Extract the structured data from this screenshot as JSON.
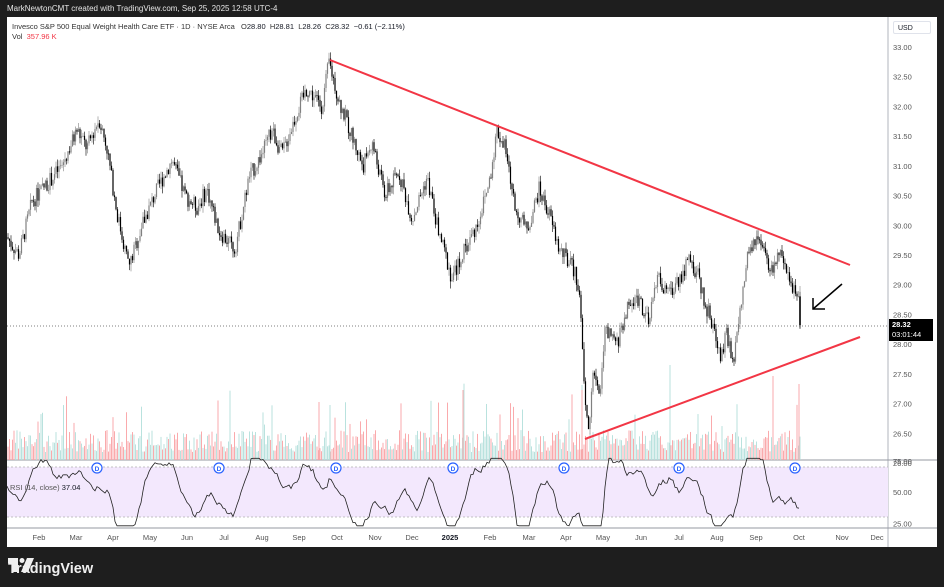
{
  "header": {
    "credit": "MarkNewtonCMT created with TradingView.com, Sep 25, 2025 12:58 UTC-4"
  },
  "legend": {
    "symbol": "Invesco S&P 500 Equal Weight Health Care ETF · 1D · NYSE Arca",
    "open_label": "O",
    "open": "28.80",
    "high_label": "H",
    "high": "28.81",
    "low_label": "L",
    "low": "28.26",
    "close_label": "C",
    "close": "28.32",
    "change": "−0.61 (−2.11%)",
    "vol_label": "Vol",
    "vol": "357.96 K"
  },
  "price_axis": {
    "currency": "USD",
    "ticks": [
      "33.00",
      "32.50",
      "32.00",
      "31.50",
      "31.00",
      "30.50",
      "30.00",
      "29.50",
      "29.00",
      "28.50",
      "28.00",
      "27.50",
      "27.00",
      "26.50",
      "26.00"
    ],
    "last_price": "28.32",
    "countdown": "03:01:44"
  },
  "rsi_panel": {
    "label": "RSI (14, close)",
    "value": "37.04",
    "ticks": [
      "75.00",
      "50.00",
      "25.00"
    ]
  },
  "time_axis": {
    "ticks": [
      "Feb",
      "Mar",
      "Apr",
      "May",
      "Jun",
      "Jul",
      "Aug",
      "Sep",
      "Oct",
      "Nov",
      "Dec",
      "2025",
      "Feb",
      "Mar",
      "Apr",
      "May",
      "Jun",
      "Jul",
      "Aug",
      "Sep",
      "Oct",
      "Nov",
      "Dec"
    ]
  },
  "dividend_markers": [
    "D",
    "D",
    "D",
    "D",
    "D",
    "D",
    "D"
  ],
  "footer": {
    "brand": "TradingView"
  },
  "colors": {
    "up_candle": "#808080",
    "down_candle": "#000000",
    "trendline": "#f23645",
    "vol_up": "#b2dfdb",
    "vol_down": "#faa1a4",
    "rsi_band": "#f3e8fd",
    "dividend": "#2962ff"
  },
  "chart_data": {
    "type": "candlestick",
    "title": "Invesco S&P 500 Equal Weight Health Care ETF · 1D · NYSE Arca",
    "xlabel": "",
    "ylabel": "USD",
    "ylim": [
      26.0,
      33.0
    ],
    "x_range": [
      "2024-01",
      "2025-12"
    ],
    "key_points": [
      {
        "date": "2024-01",
        "price": 29.8
      },
      {
        "date": "2024-02-mid",
        "price": 31.2
      },
      {
        "date": "2024-03-mid",
        "price": 31.8
      },
      {
        "date": "2024-04-mid",
        "price": 29.3
      },
      {
        "date": "2024-05-mid",
        "price": 31.1
      },
      {
        "date": "2024-06-end",
        "price": 29.6
      },
      {
        "date": "2024-08-mid",
        "price": 31.6
      },
      {
        "date": "2024-09-early",
        "price": 32.8
      },
      {
        "date": "2024-10-mid",
        "price": 31.4
      },
      {
        "date": "2024-11-mid",
        "price": 30.0
      },
      {
        "date": "2024-12-end",
        "price": 29.0
      },
      {
        "date": "2025-01-end",
        "price": 31.7
      },
      {
        "date": "2025-03-mid",
        "price": 30.4
      },
      {
        "date": "2025-04-end",
        "price": 29.1
      },
      {
        "date": "2025-04-09",
        "price": 26.4
      },
      {
        "date": "2025-06-mid",
        "price": 29.0
      },
      {
        "date": "2025-07-mid",
        "price": 29.9
      },
      {
        "date": "2025-08-early",
        "price": 27.4
      },
      {
        "date": "2025-09-early",
        "price": 29.95
      },
      {
        "date": "2025-09-25",
        "price": 28.32
      }
    ],
    "last_candle": {
      "open": 28.8,
      "high": 28.81,
      "low": 28.26,
      "close": 28.32,
      "change": -0.61,
      "change_pct": -2.11,
      "volume": "357.96K"
    },
    "annotations": [
      {
        "type": "trendline",
        "label": "descending resistance",
        "from": {
          "date": "2024-09-early",
          "price": 32.85
        },
        "to": {
          "date": "2025-10-end",
          "price": 29.35
        }
      },
      {
        "type": "trendline",
        "label": "ascending support",
        "from": {
          "date": "2025-04-09",
          "price": 26.4
        },
        "to": {
          "date": "2025-11-end",
          "price": 28.1
        }
      },
      {
        "type": "arrow",
        "label": "pointing to last candle",
        "at": {
          "date": "2025-09-25",
          "price": 28.6
        }
      },
      {
        "type": "hline",
        "label": "last price",
        "price": 28.32
      }
    ],
    "indicators": [
      {
        "name": "RSI (14, close)",
        "last": 37.04,
        "bands": [
          70,
          30
        ],
        "axis_ticks": [
          75,
          50,
          25
        ]
      }
    ],
    "legend_position": "top-left",
    "grid": false
  }
}
